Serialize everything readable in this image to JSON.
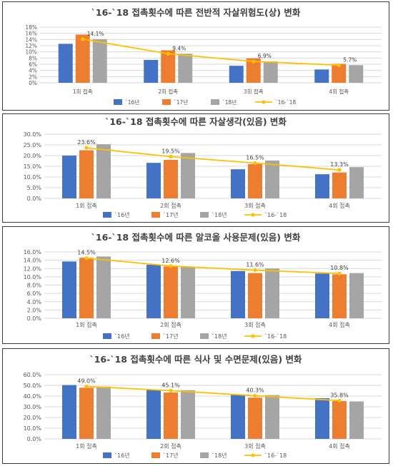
{
  "colors": {
    "y16": "#4472C4",
    "y17": "#ED7D31",
    "y18": "#A5A5A5",
    "trend": "#FFC000",
    "grid": "#D9D9D9"
  },
  "chart_data": [
    {
      "type": "bar",
      "title": "`16-`18 접촉횟수에 따른 전반적 자살위험도(상) 변화",
      "categories": [
        "1회 접촉",
        "2회 접촉",
        "3회 접촉",
        "4회 접촉"
      ],
      "ylim": [
        0,
        18
      ],
      "yticks": [
        "0%",
        "2%",
        "4%",
        "6%",
        "8%",
        "10%",
        "12%",
        "14%",
        "16%",
        "18%"
      ],
      "series": [
        {
          "name": "`16년",
          "values": [
            12.6,
            7.4,
            5.5,
            4.3
          ]
        },
        {
          "name": "`17년",
          "values": [
            15.6,
            10.5,
            7.9,
            6.1
          ]
        },
        {
          "name": "`18년",
          "values": [
            14.1,
            9.4,
            6.9,
            5.7
          ]
        }
      ],
      "trend": {
        "name": "`16-`18",
        "values": [
          14.1,
          9.4,
          6.9,
          5.7
        ],
        "labels": [
          "14.1%",
          "9.4%",
          "6.9%",
          "5.7%"
        ]
      },
      "grid": true,
      "legend": "bottom"
    },
    {
      "type": "bar",
      "title": "`16-`18 접촉횟수에 따른 자살생각(있음) 변화",
      "categories": [
        "1회 접촉",
        "2회 접촉",
        "3회 접촉",
        "4회 접촉"
      ],
      "ylim": [
        0,
        30
      ],
      "yticks": [
        "0.0%",
        "5.0%",
        "10.0%",
        "15.0%",
        "20.0%",
        "25.0%",
        "30.0%"
      ],
      "series": [
        {
          "name": "`16년",
          "values": [
            20.0,
            16.6,
            13.6,
            11.3
          ]
        },
        {
          "name": "`17년",
          "values": [
            22.5,
            18.0,
            16.0,
            12.1
          ]
        },
        {
          "name": "`18년",
          "values": [
            25.3,
            21.2,
            17.7,
            14.6
          ]
        }
      ],
      "trend": {
        "name": "`16-`18",
        "values": [
          23.6,
          19.5,
          16.5,
          13.3
        ],
        "labels": [
          "23.6%",
          "19.5%",
          "16.5%",
          "13.3%"
        ]
      },
      "grid": true,
      "legend": "bottom"
    },
    {
      "type": "bar",
      "title": "`16-`18 접촉횟수에 따른 알코올 사용문제(있음) 변화",
      "categories": [
        "1회 접촉",
        "2회 접촉",
        "3회 접촉",
        "4회 접촉"
      ],
      "ylim": [
        0,
        16
      ],
      "yticks": [
        "0.0%",
        "2.0%",
        "4.0%",
        "6.0%",
        "8.0%",
        "10.0%",
        "12.0%",
        "14.0%",
        "16.0%"
      ],
      "series": [
        {
          "name": "`16년",
          "values": [
            13.7,
            12.9,
            11.4,
            10.8
          ]
        },
        {
          "name": "`17년",
          "values": [
            14.6,
            12.5,
            10.9,
            10.6
          ]
        },
        {
          "name": "`18년",
          "values": [
            14.9,
            12.4,
            12.0,
            10.9
          ]
        }
      ],
      "trend": {
        "name": "`16-`18",
        "values": [
          14.5,
          12.6,
          11.6,
          10.8
        ],
        "labels": [
          "14.5%",
          "12.6%",
          "11.6%",
          "10.8%"
        ]
      },
      "grid": true,
      "legend": "bottom"
    },
    {
      "type": "bar",
      "title": "`16-`18 접촉횟수에 따른 식사 및 수면문제(있음) 변화",
      "categories": [
        "1회 접촉",
        "2회 접촉",
        "3회 접촉",
        "4회 접촉"
      ],
      "ylim": [
        0,
        60
      ],
      "yticks": [
        "0.0%",
        "10.0%",
        "20.0%",
        "30.0%",
        "40.0%",
        "50.0%",
        "60.0%"
      ],
      "series": [
        {
          "name": "`16년",
          "values": [
            50.3,
            45.8,
            41.5,
            38.0
          ]
        },
        {
          "name": "`17년",
          "values": [
            47.8,
            43.3,
            38.5,
            35.3
          ]
        },
        {
          "name": "`18년",
          "values": [
            48.9,
            45.5,
            40.9,
            35.0
          ]
        }
      ],
      "trend": {
        "name": "`16-`18",
        "values": [
          49.0,
          45.1,
          40.3,
          35.8
        ],
        "labels": [
          "49.0%",
          "45.1%",
          "40.3%",
          "35.8%"
        ]
      },
      "grid": true,
      "legend": "bottom"
    }
  ]
}
